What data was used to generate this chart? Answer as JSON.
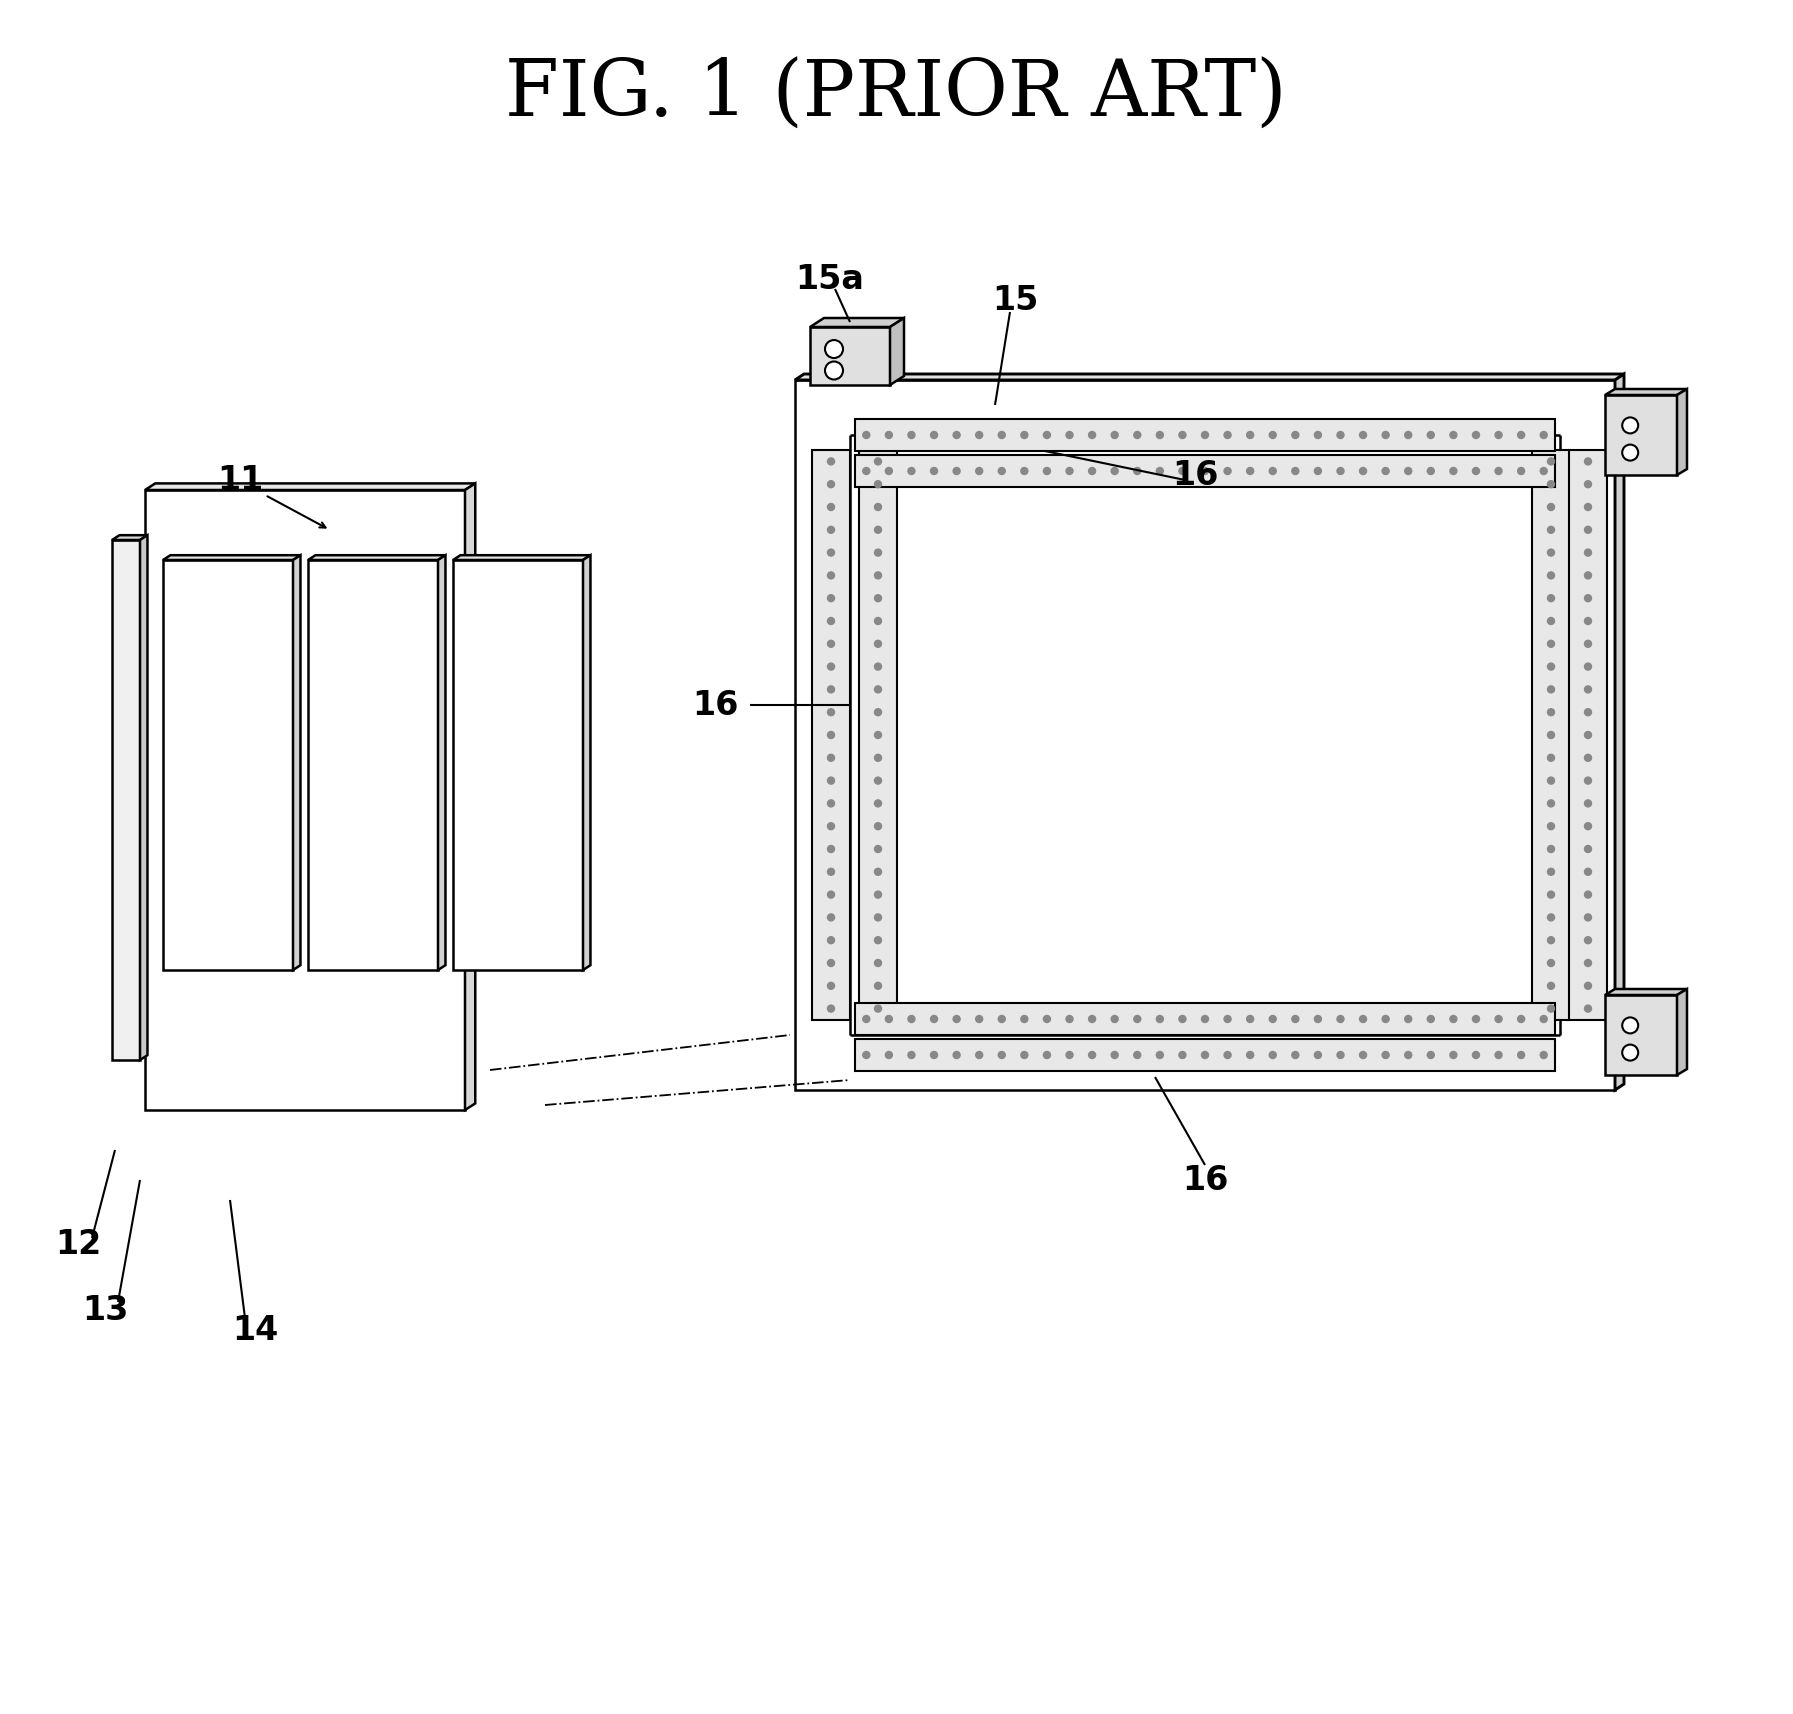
{
  "title": "FIG. 1 (PRIOR ART)",
  "title_fontsize": 56,
  "title_font": "serif",
  "bg_color": "#ffffff",
  "line_color": "#000000",
  "label_fontsize": 24,
  "lw": 1.8
}
